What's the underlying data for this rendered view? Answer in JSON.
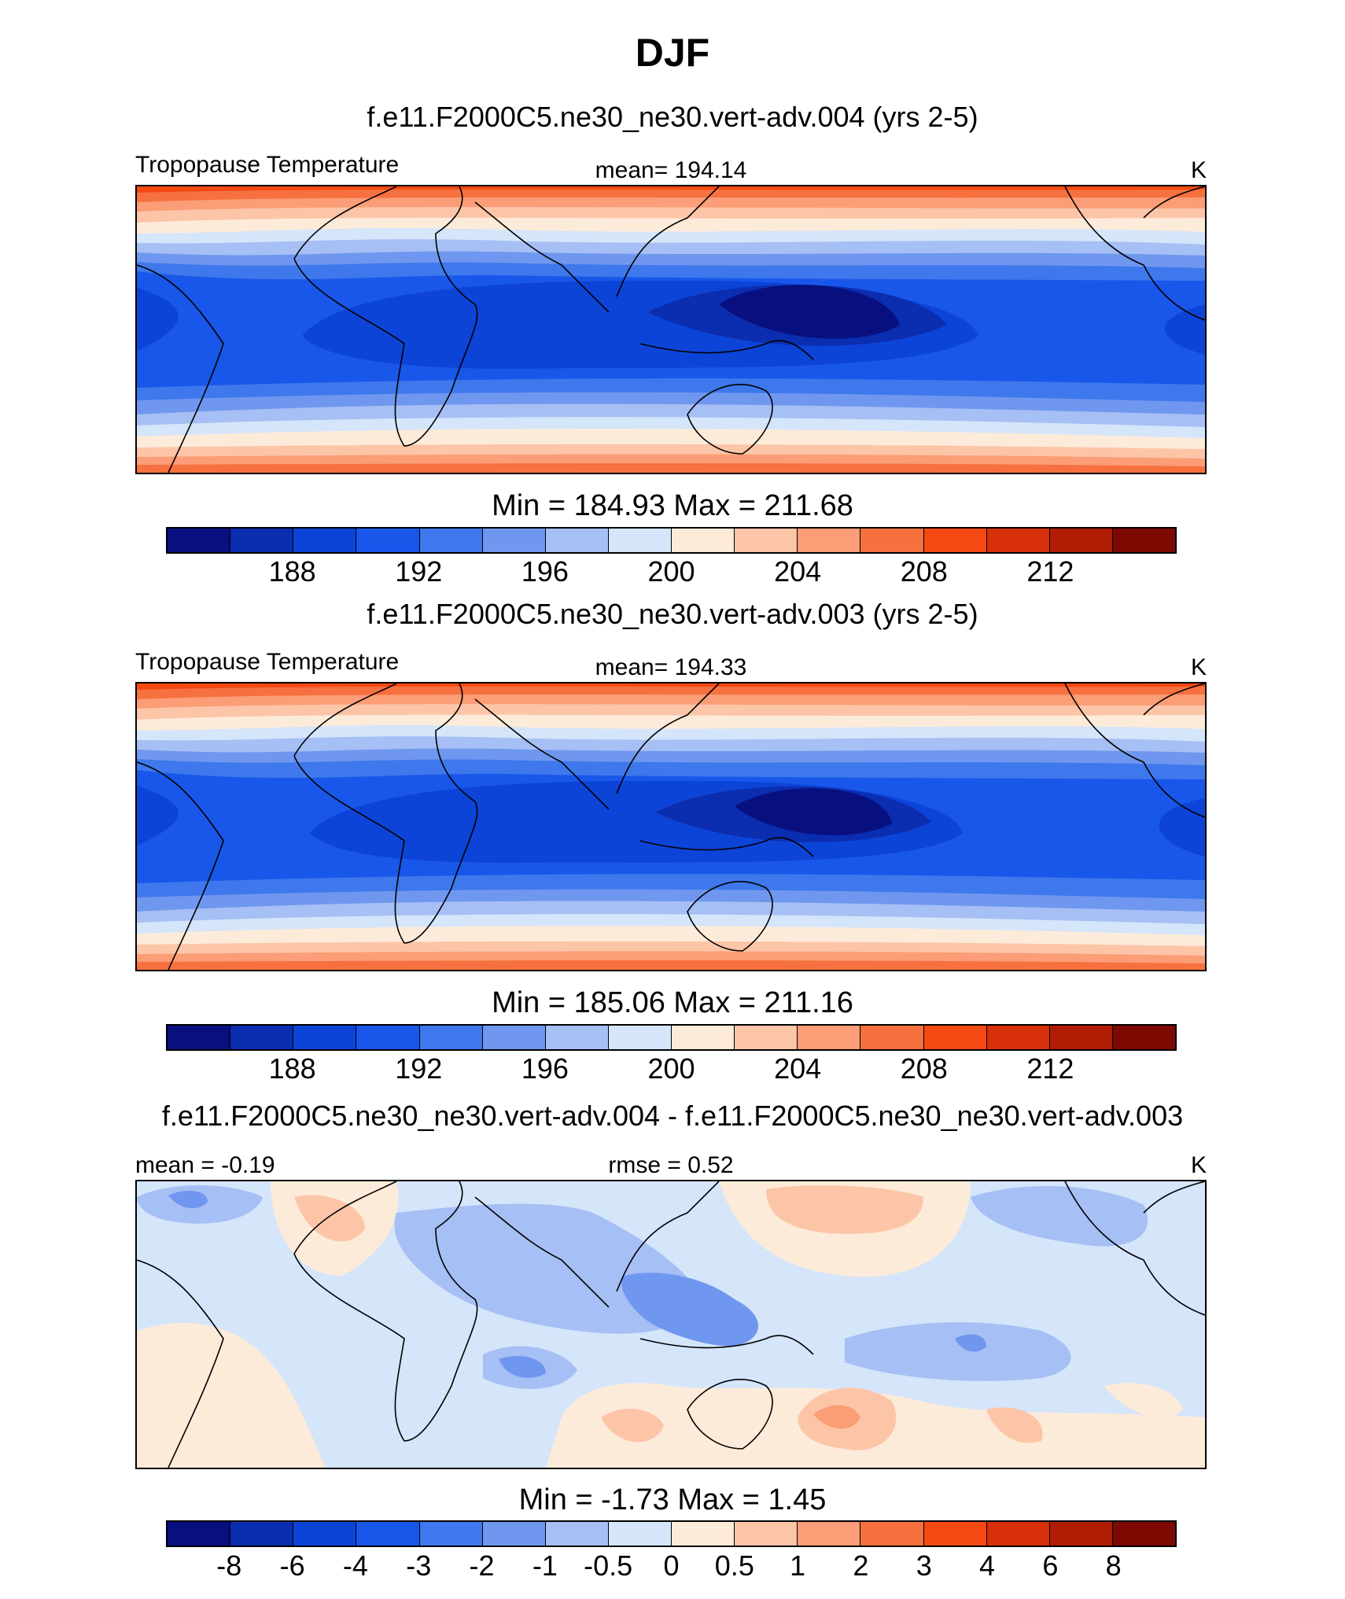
{
  "figure": {
    "title": "DJF"
  },
  "colors": {
    "temp_palette": [
      "#08107f",
      "#0b2db0",
      "#0d44d8",
      "#1957ea",
      "#3e78ec",
      "#7097ef",
      "#a6bff4",
      "#d5e5fa",
      "#fdebda",
      "#fdc5a8",
      "#fb9d76",
      "#f7703f",
      "#f44912",
      "#d8300a",
      "#b01c04",
      "#7e0802"
    ],
    "diff_palette": [
      "#08107f",
      "#0b2db0",
      "#0d44d8",
      "#1957ea",
      "#3e78ec",
      "#7097ef",
      "#a6bff4",
      "#d5e5fa",
      "#fdebda",
      "#fdc5a8",
      "#fb9d76",
      "#f7703f",
      "#f44912",
      "#d8300a",
      "#b01c04",
      "#7e0802"
    ]
  },
  "panels": [
    {
      "title": "f.e11.F2000C5.ne30_ne30.vert-adv.004 (yrs 2-5)",
      "left_label": "Tropopause Temperature",
      "center_label": "mean= 194.14",
      "units": "K",
      "minmax": "Min = 184.93 Max = 211.68",
      "colorbar": {
        "ticks": [
          "188",
          "192",
          "196",
          "200",
          "204",
          "208",
          "212"
        ]
      }
    },
    {
      "title": "f.e11.F2000C5.ne30_ne30.vert-adv.003 (yrs 2-5)",
      "left_label": "Tropopause Temperature",
      "center_label": "mean= 194.33",
      "units": "K",
      "minmax": "Min = 185.06 Max = 211.16",
      "colorbar": {
        "ticks": [
          "188",
          "192",
          "196",
          "200",
          "204",
          "208",
          "212"
        ]
      }
    },
    {
      "title": "f.e11.F2000C5.ne30_ne30.vert-adv.004 - f.e11.F2000C5.ne30_ne30.vert-adv.003",
      "left_label": "mean =  -0.19",
      "center_label": "rmse =   0.52",
      "units": "K",
      "minmax": "Min =  -1.73 Max =   1.45",
      "colorbar": {
        "ticks": [
          "-8",
          "-6",
          "-4",
          "-3",
          "-2",
          "-1",
          "-0.5",
          "0",
          "0.5",
          "1",
          "2",
          "3",
          "4",
          "6",
          "8"
        ]
      }
    }
  ]
}
